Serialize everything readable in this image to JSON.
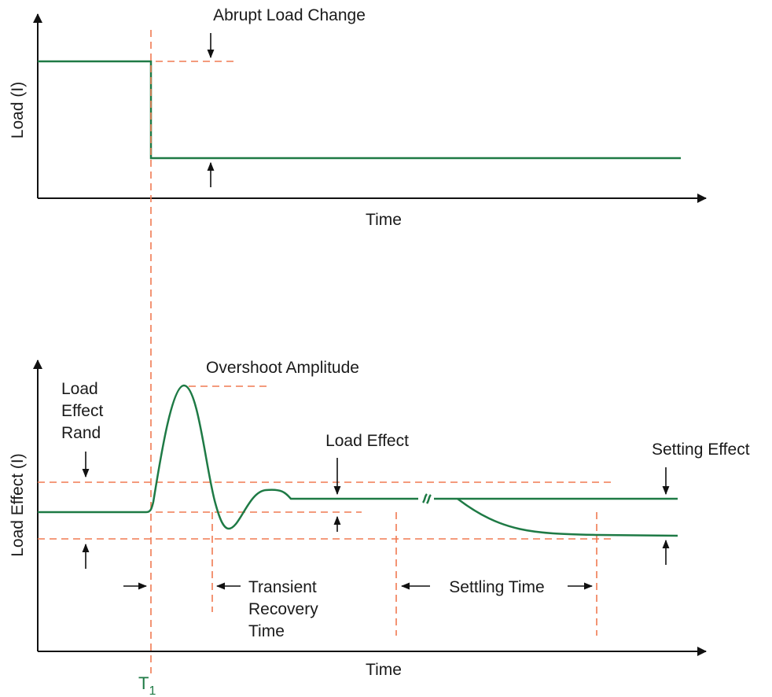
{
  "colors": {
    "signal": "#1e7a45",
    "reference": "#f07a52",
    "axis": "#111111",
    "text": "#1a1a1a"
  },
  "top_plot": {
    "y_label": "Load (I)",
    "x_label": "Time",
    "annotation": "Abrupt Load Change"
  },
  "bottom_plot": {
    "y_label": "Load Effect (I)",
    "x_label": "Time",
    "band_label_lines": [
      "Load",
      "Effect",
      "Rand"
    ],
    "overshoot_label": "Overshoot Amplitude",
    "load_effect_label": "Load Effect",
    "setting_effect_label": "Setting Effect",
    "transient_label_lines": [
      "Transient",
      "Recovery",
      "Time"
    ],
    "settling_label": "Settling Time"
  },
  "marker": {
    "main": "T",
    "sub": "1"
  }
}
